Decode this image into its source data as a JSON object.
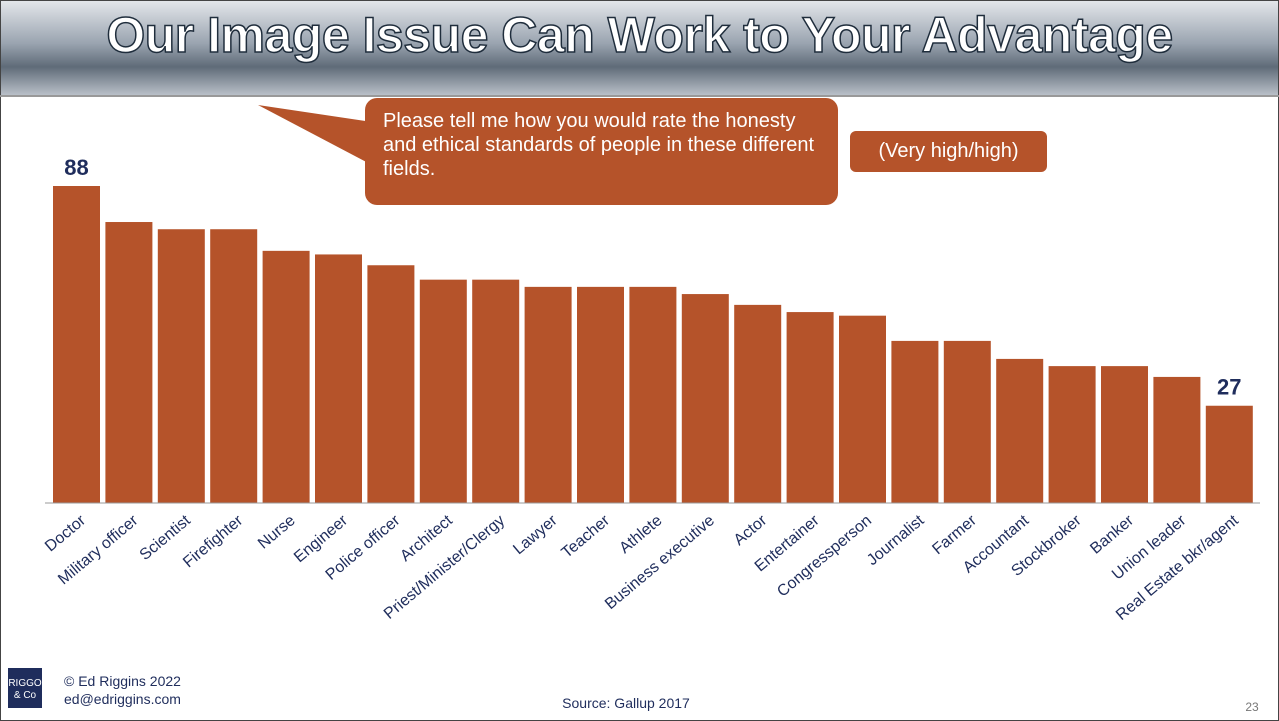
{
  "chart_data": {
    "type": "bar",
    "title": "Our Image Issue Can Work to Your Advantage",
    "annotations": [
      "Please tell me how you would rate the honesty and ethical standards of people in these different fields.",
      "(Very high/high)"
    ],
    "categories": [
      "Doctor",
      "Military officer",
      "Scientist",
      "Firefighter",
      "Nurse",
      "Engineer",
      "Police officer",
      "Architect",
      "Priest/Minister/Clergy",
      "Lawyer",
      "Teacher",
      "Athlete",
      "Business executive",
      "Actor",
      "Entertainer",
      "Congressperson",
      "Journalist",
      "Farmer",
      "Accountant",
      "Stockbroker",
      "Banker",
      "Union leader",
      "Real Estate bkr/agent"
    ],
    "values": [
      88,
      78,
      76,
      76,
      70,
      69,
      66,
      62,
      62,
      60,
      60,
      60,
      58,
      55,
      53,
      52,
      45,
      45,
      40,
      38,
      38,
      35,
      27
    ],
    "value_labels": [
      "88",
      null,
      null,
      null,
      null,
      null,
      null,
      null,
      null,
      null,
      null,
      null,
      null,
      null,
      null,
      null,
      null,
      null,
      null,
      null,
      null,
      null,
      "27"
    ],
    "color": "#b5532a"
  },
  "footer": {
    "logo": [
      "RIGGO",
      "& Co"
    ],
    "copyright": "© Ed Riggins 2022",
    "email": "ed@edriggins.com",
    "source": "Source: Gallup 2017",
    "page": "23"
  }
}
